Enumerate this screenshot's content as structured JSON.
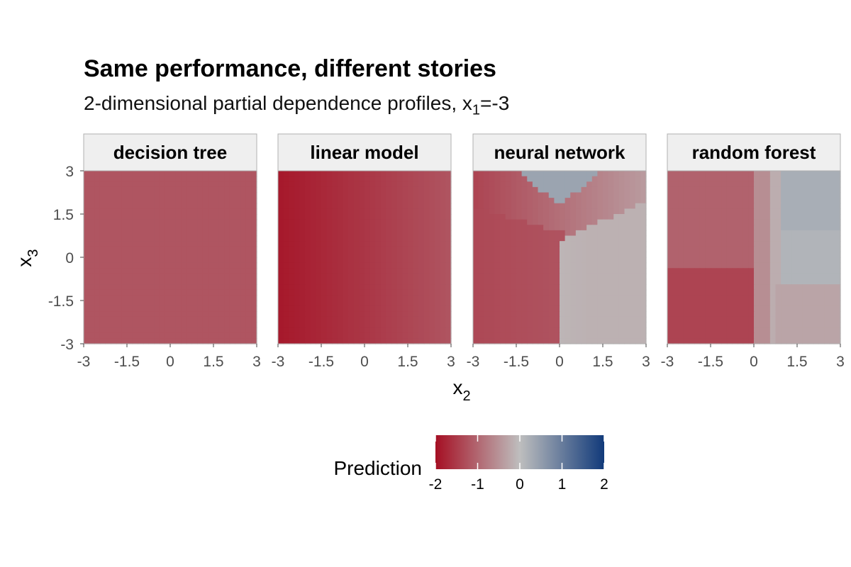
{
  "chart_data": {
    "type": "heatmap",
    "title": "Same performance, different stories",
    "subtitle": {
      "prefix": "2-dimensional partial dependence profiles, x",
      "sub": "1",
      "suffix": "=-3"
    },
    "xlabel": {
      "base": "x",
      "sub": "2"
    },
    "ylabel": {
      "base": "x",
      "sub": "3"
    },
    "xlim": [
      -3,
      3
    ],
    "ylim": [
      -3,
      3
    ],
    "x_ticks": [
      "-3",
      "-1.5",
      "0",
      "1.5",
      "3"
    ],
    "y_ticks": [
      "3",
      "1.5",
      "0",
      "-1.5",
      "-3"
    ],
    "facets": [
      {
        "name": "decision tree",
        "model": "constant",
        "value": -1.2
      },
      {
        "name": "linear model",
        "model": "linear",
        "at_x_min": -1.9,
        "at_x_max": -1.2
      },
      {
        "name": "neural network",
        "model": "piecewise",
        "range": [
          -1.6,
          0.5
        ]
      },
      {
        "name": "random forest",
        "model": "stepwise",
        "range": [
          -1.6,
          0.5
        ]
      }
    ],
    "legend": {
      "title": "Prediction",
      "position": "bottom",
      "range": [
        -2,
        2
      ],
      "ticks": [
        "-2",
        "-1",
        "0",
        "1",
        "2"
      ],
      "colors": {
        "low": "#a50f23",
        "mid": "#bebebe",
        "high": "#113a7a"
      }
    },
    "grid": false
  }
}
